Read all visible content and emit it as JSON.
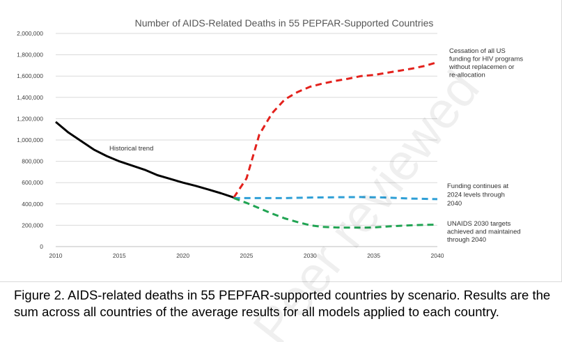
{
  "chart_data": {
    "type": "line",
    "title": "Number of AIDS-Related Deaths in 55 PEPFAR-Supported Countries",
    "xlabel": "",
    "ylabel": "",
    "xlim": [
      2010,
      2040
    ],
    "ylim": [
      0,
      2000000
    ],
    "x_ticks": [
      "2010",
      "2015",
      "2020",
      "2025",
      "2030",
      "2035",
      "2040"
    ],
    "y_ticks": [
      "0",
      "200,000",
      "400,000",
      "600,000",
      "800,000",
      "1,000,000",
      "1,200,000",
      "1,400,000",
      "1,600,000",
      "1,800,000",
      "2,000,000"
    ],
    "grid": "horizontal",
    "series": [
      {
        "name": "Historical trend",
        "color": "#000000",
        "style": "solid",
        "x": [
          2010,
          2011,
          2012,
          2013,
          2014,
          2015,
          2016,
          2017,
          2018,
          2019,
          2020,
          2021,
          2022,
          2023,
          2024
        ],
        "y": [
          1170000,
          1070000,
          990000,
          910000,
          850000,
          800000,
          760000,
          720000,
          670000,
          635000,
          600000,
          570000,
          535000,
          500000,
          460000
        ]
      },
      {
        "name": "Cessation of all US funding for HIV programs without replacemen or re-allocation",
        "color": "#e3211c",
        "style": "dashed",
        "x": [
          2024,
          2025,
          2026,
          2027,
          2028,
          2029,
          2030,
          2031,
          2032,
          2033,
          2034,
          2035,
          2036,
          2037,
          2038,
          2039,
          2040
        ],
        "y": [
          460000,
          640000,
          1050000,
          1250000,
          1380000,
          1450000,
          1500000,
          1530000,
          1555000,
          1575000,
          1600000,
          1610000,
          1630000,
          1650000,
          1670000,
          1695000,
          1730000
        ]
      },
      {
        "name": "Funding continues at 2024 levels through 2040",
        "color": "#2e9fd6",
        "style": "dashed",
        "x": [
          2024,
          2026,
          2028,
          2030,
          2032,
          2034,
          2036,
          2038,
          2040
        ],
        "y": [
          455000,
          455000,
          455000,
          460000,
          463000,
          465000,
          460000,
          450000,
          445000
        ]
      },
      {
        "name": "UNAIDS 2030 targets achieved and maintained through 2040",
        "color": "#21a453",
        "style": "dashed",
        "x": [
          2024,
          2025,
          2026,
          2027,
          2028,
          2029,
          2030,
          2031,
          2032,
          2033,
          2034,
          2035,
          2036,
          2037,
          2038,
          2039,
          2040
        ],
        "y": [
          455000,
          410000,
          360000,
          310000,
          265000,
          230000,
          200000,
          185000,
          180000,
          178000,
          178000,
          180000,
          188000,
          195000,
          200000,
          204000,
          205000
        ]
      }
    ],
    "annotations": [
      {
        "series": 0,
        "lines": [
          "Historical trend"
        ]
      },
      {
        "series": 1,
        "lines": [
          "Cessation of all US",
          "funding for HIV programs",
          "without replacemen or",
          "re-allocation"
        ]
      },
      {
        "series": 2,
        "lines": [
          "Funding continues at",
          "2024 levels through",
          "2040"
        ]
      },
      {
        "series": 3,
        "lines": [
          "UNAIDS 2030 targets",
          "achieved and maintained",
          "through 2040"
        ]
      }
    ]
  },
  "caption": "Figure 2. AIDS-related deaths in 55 PEPFAR-supported countries by scenario. Results are the sum across all countries of the average results for all models applied to each country.",
  "watermark": "Peer reviewed"
}
